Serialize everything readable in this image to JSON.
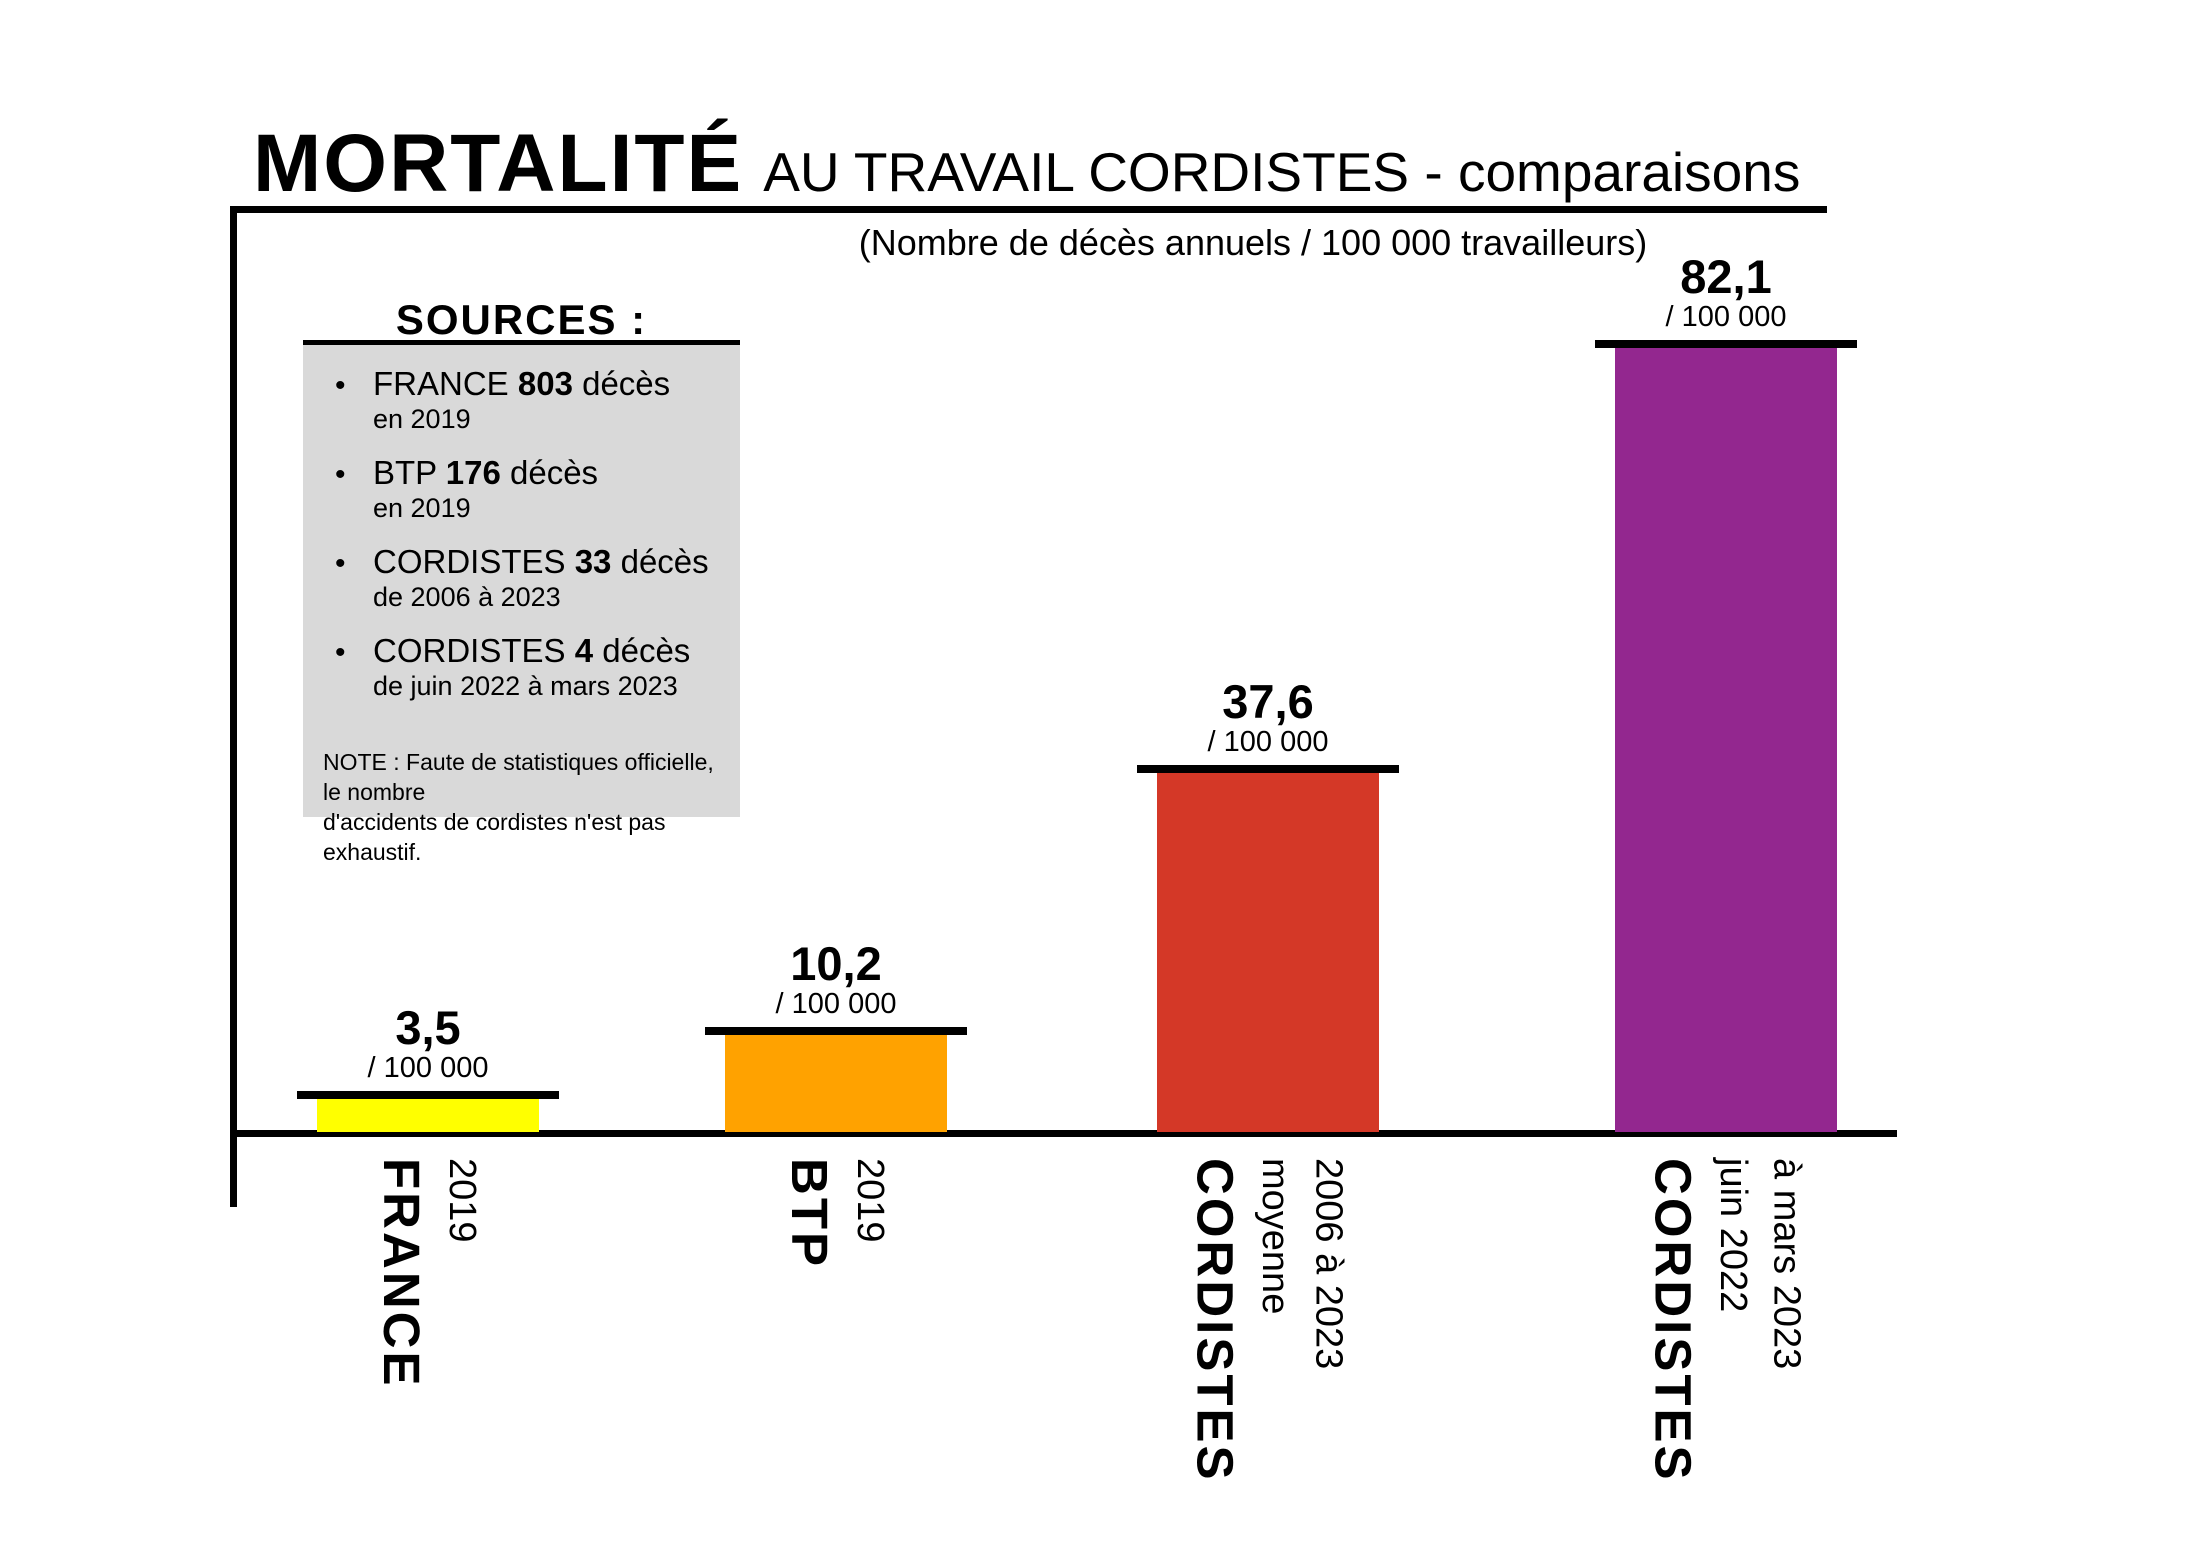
{
  "title": {
    "main": "MORTALITÉ",
    "rest": "AU TRAVAIL CORDISTES - comparaisons"
  },
  "subtitle": "(Nombre de décès annuels / 100 000 travailleurs)",
  "sources_box": {
    "header": "SOURCES :",
    "bullet": "•",
    "items": [
      {
        "prefix": "FRANCE",
        "value": "803",
        "suffix": "décès",
        "period": "en 2019"
      },
      {
        "prefix": "BTP",
        "value": "176",
        "suffix": "décès",
        "period": "en 2019"
      },
      {
        "prefix": "CORDISTES",
        "value": "33",
        "suffix": "décès",
        "period": "de 2006 à 2023"
      },
      {
        "prefix": "CORDISTES",
        "value": "4",
        "suffix": "décès",
        "period": "de juin 2022 à mars 2023"
      }
    ],
    "note_line1": "NOTE : Faute de statistiques officielle, le nombre",
    "note_line2": "d'accidents de cordistes n'est pas exhaustif."
  },
  "chart_data": {
    "type": "bar",
    "title": "MORTALITÉ AU TRAVAIL CORDISTES - comparaisons",
    "subtitle": "(Nombre de décès annuels / 100 000 travailleurs)",
    "ylabel": "Nombre de décès annuels / 100 000 travailleurs",
    "ylim": [
      0,
      85
    ],
    "grid": false,
    "legend": "none",
    "categories": [
      "FRANCE 2019",
      "BTP 2019",
      "CORDISTES moyenne 2006 à 2023",
      "CORDISTES juin 2022 à mars 2023"
    ],
    "values": [
      3.5,
      10.2,
      37.6,
      82.1
    ],
    "bars": [
      {
        "name": "FRANCE",
        "sub1": "2019",
        "sub2": "",
        "value": 3.5,
        "value_label": "3,5",
        "unit_label": "/ 100 000",
        "color": "#ffff00"
      },
      {
        "name": "BTP",
        "sub1": "2019",
        "sub2": "",
        "value": 10.2,
        "value_label": "10,2",
        "unit_label": "/ 100 000",
        "color": "#ffa200"
      },
      {
        "name": "CORDISTES",
        "sub1": "moyenne",
        "sub2": "2006 à 2023",
        "value": 37.6,
        "value_label": "37,6",
        "unit_label": "/ 100 000",
        "color": "#d43827"
      },
      {
        "name": "CORDISTES",
        "sub1": "juin 2022",
        "sub2": "à mars 2023",
        "value": 82.1,
        "value_label": "82,1",
        "unit_label": "/ 100 000",
        "color": "#93278f"
      }
    ],
    "colors": {
      "bar1": "#ffff00",
      "bar2": "#ffa200",
      "bar3": "#d43827",
      "bar4": "#93278f",
      "axis": "#000000",
      "sources_box_bg": "#d9d9d9"
    }
  }
}
